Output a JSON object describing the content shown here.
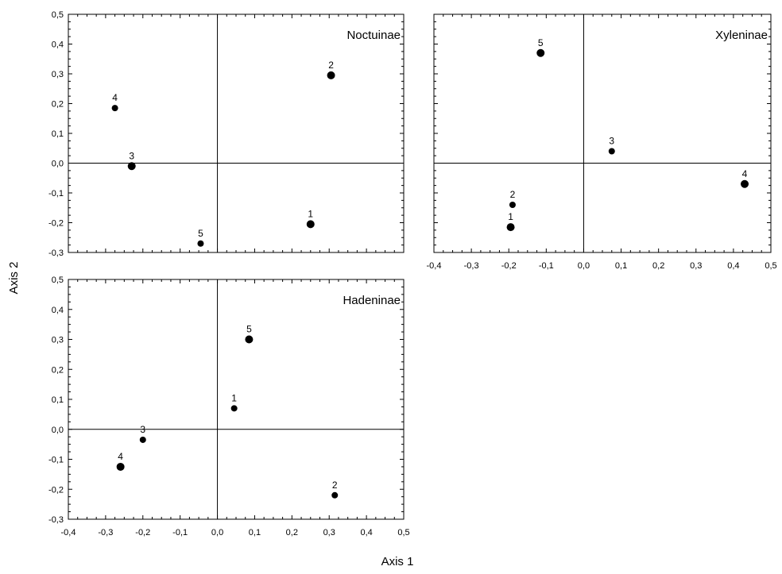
{
  "figure": {
    "xlabel": "Axis 1",
    "ylabel": "Axis 2"
  },
  "chart_data": [
    {
      "type": "scatter",
      "title": "Noctuinae",
      "xlim": [
        -0.4,
        0.5
      ],
      "ylim": [
        -0.3,
        0.5
      ],
      "xticks": [],
      "yticks": [
        "-0,3",
        "-0,2",
        "-0,1",
        "0,0",
        "0,1",
        "0,2",
        "0,3",
        "0,4",
        "0,5"
      ],
      "points": [
        {
          "label": "1",
          "x": 0.25,
          "y": -0.205,
          "size": "large"
        },
        {
          "label": "2",
          "x": 0.305,
          "y": 0.295,
          "size": "large"
        },
        {
          "label": "3",
          "x": -0.23,
          "y": -0.01,
          "size": "large"
        },
        {
          "label": "4",
          "x": -0.275,
          "y": 0.185,
          "size": "small"
        },
        {
          "label": "5",
          "x": -0.045,
          "y": -0.27,
          "size": "small"
        }
      ]
    },
    {
      "type": "scatter",
      "title": "Xyleninae",
      "xlim": [
        -0.4,
        0.5
      ],
      "ylim": [
        -0.3,
        0.5
      ],
      "xticks": [
        "-0,4",
        "-0,3",
        "-0,2",
        "-0,1",
        "0,0",
        "0,1",
        "0,2",
        "0,3",
        "0,4",
        "0,5"
      ],
      "yticks": [],
      "points": [
        {
          "label": "1",
          "x": -0.195,
          "y": -0.215,
          "size": "large"
        },
        {
          "label": "2",
          "x": -0.19,
          "y": -0.14,
          "size": "small"
        },
        {
          "label": "3",
          "x": 0.075,
          "y": 0.04,
          "size": "small"
        },
        {
          "label": "4",
          "x": 0.43,
          "y": -0.07,
          "size": "large"
        },
        {
          "label": "5",
          "x": -0.115,
          "y": 0.37,
          "size": "large"
        }
      ]
    },
    {
      "type": "scatter",
      "title": "Hadeninae",
      "xlim": [
        -0.4,
        0.5
      ],
      "ylim": [
        -0.3,
        0.5
      ],
      "xticks": [
        "-0,4",
        "-0,3",
        "-0,2",
        "-0,1",
        "0,0",
        "0,1",
        "0,2",
        "0,3",
        "0,4",
        "0,5"
      ],
      "yticks": [
        "-0,3",
        "-0,2",
        "-0,1",
        "0,0",
        "0,1",
        "0,2",
        "0,3",
        "0,4",
        "0,5"
      ],
      "points": [
        {
          "label": "1",
          "x": 0.045,
          "y": 0.07,
          "size": "small"
        },
        {
          "label": "2",
          "x": 0.315,
          "y": -0.22,
          "size": "small"
        },
        {
          "label": "3",
          "x": -0.2,
          "y": -0.035,
          "size": "small"
        },
        {
          "label": "4",
          "x": -0.26,
          "y": -0.125,
          "size": "large"
        },
        {
          "label": "5",
          "x": 0.085,
          "y": 0.3,
          "size": "large"
        }
      ]
    }
  ]
}
